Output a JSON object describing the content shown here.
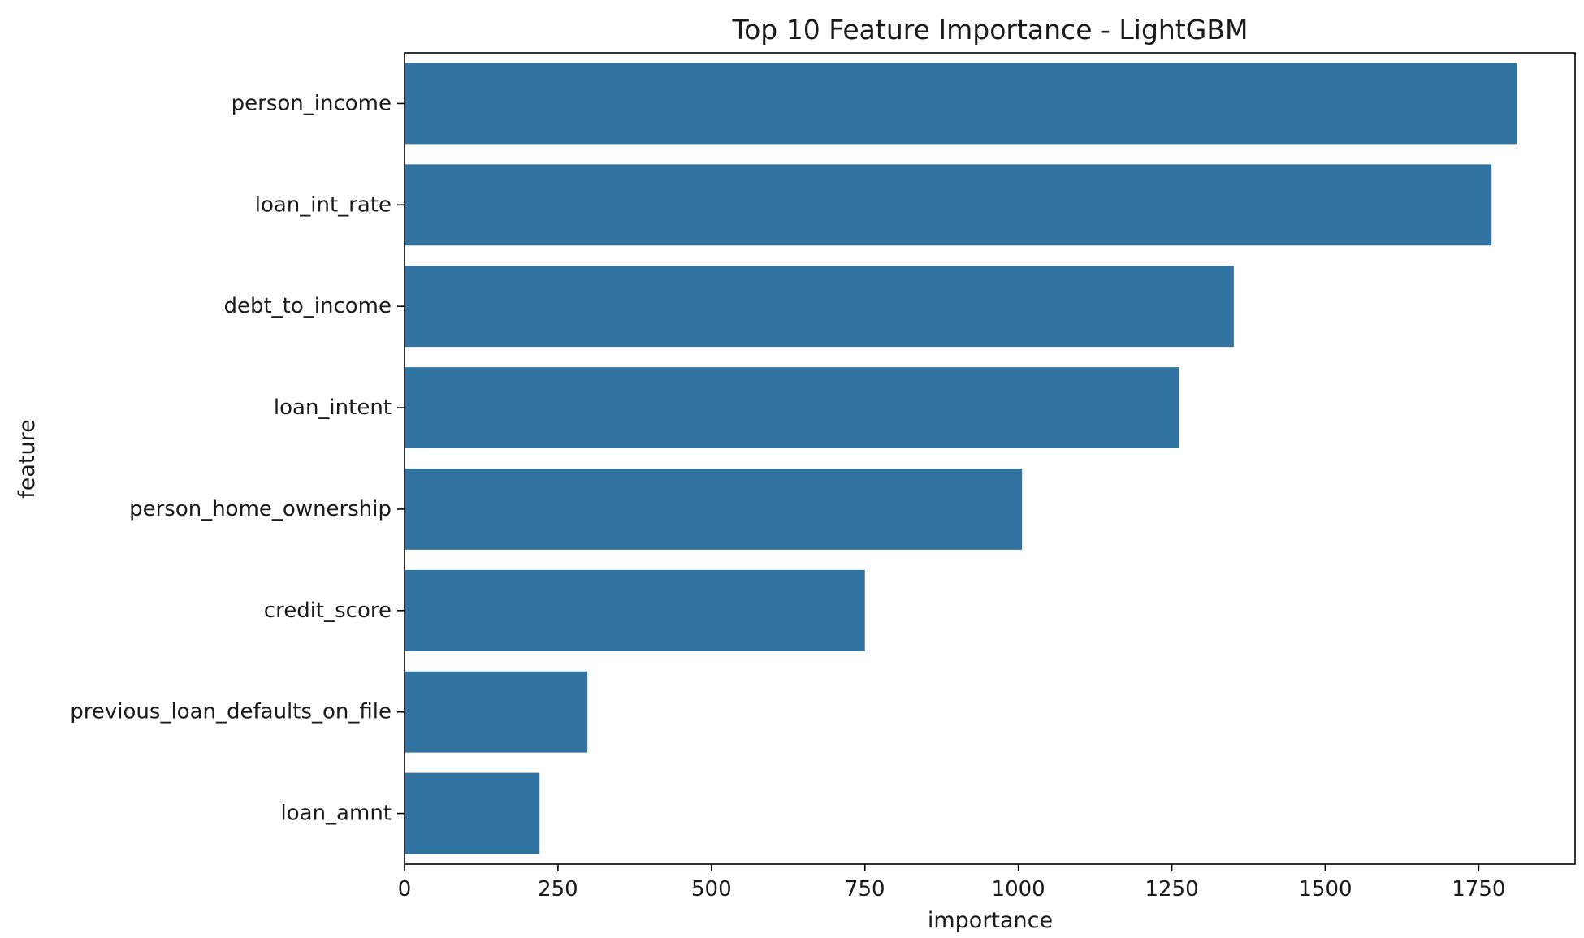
{
  "chart_data": {
    "type": "bar",
    "orientation": "horizontal",
    "title": "Top 10 Feature Importance - LightGBM",
    "xlabel": "importance",
    "ylabel": "feature",
    "categories": [
      "person_income",
      "loan_int_rate",
      "debt_to_income",
      "loan_intent",
      "person_home_ownership",
      "credit_score",
      "previous_loan_defaults_on_file",
      "loan_amnt"
    ],
    "values": [
      1813,
      1771,
      1351,
      1262,
      1006,
      750,
      298,
      220
    ],
    "xlim": [
      0,
      1907
    ],
    "xticks": [
      0,
      250,
      500,
      750,
      1000,
      1250,
      1500,
      1750
    ],
    "xtick_labels": [
      "0",
      "250",
      "500",
      "750",
      "1000",
      "1250",
      "1500",
      "1750"
    ],
    "grid": false,
    "bar_color": "#3274a1"
  }
}
